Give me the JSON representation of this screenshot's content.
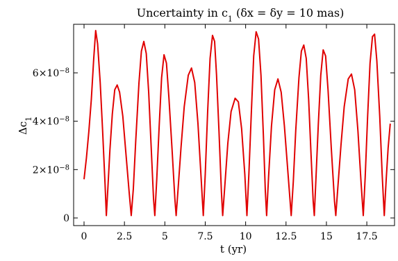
{
  "chart_data": {
    "type": "line",
    "title": "Uncertainty in c",
    "title_sub": "1",
    "title_rest": " (δx = δy = 10 mas)",
    "xlabel": "t (yr)",
    "ylabel": "Δc",
    "ylabel_sub": "1",
    "xlim": [
      0,
      19
    ],
    "ylim": [
      0,
      8.3e-08
    ],
    "x_ticks": [
      {
        "value": 0,
        "label": "0"
      },
      {
        "value": 2.5,
        "label": "2.5"
      },
      {
        "value": 5,
        "label": "5"
      },
      {
        "value": 7.5,
        "label": "7.5"
      },
      {
        "value": 10,
        "label": "10"
      },
      {
        "value": 12.5,
        "label": "12.5"
      },
      {
        "value": 15,
        "label": "15"
      },
      {
        "value": 17.5,
        "label": "17.5"
      }
    ],
    "y_ticks": [
      {
        "value": 0,
        "mant": "0",
        "exp": ""
      },
      {
        "value": 2e-08,
        "mant": "2×10",
        "exp": "−8"
      },
      {
        "value": 4e-08,
        "mant": "4×10",
        "exp": "−8"
      },
      {
        "value": 6e-08,
        "mant": "6×10",
        "exp": "−8"
      }
    ],
    "grid": false,
    "series": [
      {
        "color": "#e00000",
        "points": [
          [
            0.0,
            1.6e-08
          ],
          [
            0.15,
            2.5e-08
          ],
          [
            0.3,
            3.6e-08
          ],
          [
            0.45,
            4.9e-08
          ],
          [
            0.6,
            6.6e-08
          ],
          [
            0.72,
            7.75e-08
          ],
          [
            0.84,
            7.2e-08
          ],
          [
            1.0,
            5.6e-08
          ],
          [
            1.15,
            3.6e-08
          ],
          [
            1.3,
            1.4e-08
          ],
          [
            1.38,
            1e-09
          ],
          [
            1.48,
            1.3e-08
          ],
          [
            1.6,
            2.8e-08
          ],
          [
            1.75,
            4.3e-08
          ],
          [
            1.9,
            5.3e-08
          ],
          [
            2.05,
            5.5e-08
          ],
          [
            2.2,
            5.2e-08
          ],
          [
            2.4,
            4.2e-08
          ],
          [
            2.6,
            2.6e-08
          ],
          [
            2.8,
            1e-08
          ],
          [
            2.92,
            1e-09
          ],
          [
            3.05,
            1.2e-08
          ],
          [
            3.2,
            3.2e-08
          ],
          [
            3.4,
            5.6e-08
          ],
          [
            3.55,
            6.9e-08
          ],
          [
            3.7,
            7.3e-08
          ],
          [
            3.85,
            6.8e-08
          ],
          [
            4.0,
            5.2e-08
          ],
          [
            4.15,
            3e-08
          ],
          [
            4.3,
            8e-09
          ],
          [
            4.38,
            1e-09
          ],
          [
            4.5,
            1.6e-08
          ],
          [
            4.65,
            3.8e-08
          ],
          [
            4.8,
            5.8e-08
          ],
          [
            4.95,
            6.75e-08
          ],
          [
            5.1,
            6.4e-08
          ],
          [
            5.25,
            5e-08
          ],
          [
            5.45,
            2.8e-08
          ],
          [
            5.62,
            8e-09
          ],
          [
            5.7,
            1e-09
          ],
          [
            5.82,
            1.2e-08
          ],
          [
            6.0,
            2.9e-08
          ],
          [
            6.2,
            4.6e-08
          ],
          [
            6.45,
            5.9e-08
          ],
          [
            6.65,
            6.2e-08
          ],
          [
            6.85,
            5.6e-08
          ],
          [
            7.05,
            3.9e-08
          ],
          [
            7.25,
            1.6e-08
          ],
          [
            7.38,
            1e-09
          ],
          [
            7.5,
            1.8e-08
          ],
          [
            7.65,
            4.4e-08
          ],
          [
            7.8,
            6.6e-08
          ],
          [
            7.95,
            7.55e-08
          ],
          [
            8.08,
            7.3e-08
          ],
          [
            8.2,
            5.9e-08
          ],
          [
            8.35,
            3.6e-08
          ],
          [
            8.5,
            1.1e-08
          ],
          [
            8.58,
            1e-09
          ],
          [
            8.72,
            1.4e-08
          ],
          [
            8.9,
            3.1e-08
          ],
          [
            9.1,
            4.4e-08
          ],
          [
            9.35,
            4.95e-08
          ],
          [
            9.55,
            4.8e-08
          ],
          [
            9.75,
            3.7e-08
          ],
          [
            9.95,
            1.8e-08
          ],
          [
            10.08,
            1e-09
          ],
          [
            10.2,
            1.8e-08
          ],
          [
            10.35,
            4.3e-08
          ],
          [
            10.5,
            6.7e-08
          ],
          [
            10.65,
            7.7e-08
          ],
          [
            10.8,
            7.4e-08
          ],
          [
            10.95,
            5.9e-08
          ],
          [
            11.1,
            3.4e-08
          ],
          [
            11.22,
            1.1e-08
          ],
          [
            11.3,
            1e-09
          ],
          [
            11.42,
            1.7e-08
          ],
          [
            11.6,
            3.8e-08
          ],
          [
            11.8,
            5.3e-08
          ],
          [
            12.0,
            5.75e-08
          ],
          [
            12.2,
            5.2e-08
          ],
          [
            12.4,
            3.8e-08
          ],
          [
            12.65,
            1.6e-08
          ],
          [
            12.82,
            1e-09
          ],
          [
            12.95,
            1.5e-08
          ],
          [
            13.1,
            3.6e-08
          ],
          [
            13.3,
            5.8e-08
          ],
          [
            13.45,
            6.9e-08
          ],
          [
            13.6,
            7.15e-08
          ],
          [
            13.75,
            6.6e-08
          ],
          [
            13.9,
            4.9e-08
          ],
          [
            14.05,
            2.6e-08
          ],
          [
            14.18,
            7e-09
          ],
          [
            14.25,
            1e-09
          ],
          [
            14.35,
            1.6e-08
          ],
          [
            14.5,
            3.9e-08
          ],
          [
            14.65,
            5.9e-08
          ],
          [
            14.8,
            6.95e-08
          ],
          [
            14.95,
            6.7e-08
          ],
          [
            15.1,
            5.3e-08
          ],
          [
            15.3,
            2.9e-08
          ],
          [
            15.5,
            7e-09
          ],
          [
            15.58,
            1e-09
          ],
          [
            15.7,
            1.2e-08
          ],
          [
            15.9,
            3e-08
          ],
          [
            16.1,
            4.6e-08
          ],
          [
            16.35,
            5.75e-08
          ],
          [
            16.55,
            5.95e-08
          ],
          [
            16.75,
            5.3e-08
          ],
          [
            16.95,
            3.6e-08
          ],
          [
            17.15,
            1.4e-08
          ],
          [
            17.28,
            1e-09
          ],
          [
            17.4,
            1.7e-08
          ],
          [
            17.55,
            4.2e-08
          ],
          [
            17.7,
            6.4e-08
          ],
          [
            17.85,
            7.5e-08
          ],
          [
            17.98,
            7.6e-08
          ],
          [
            18.12,
            6.5e-08
          ],
          [
            18.3,
            4.2e-08
          ],
          [
            18.45,
            1.8e-08
          ],
          [
            18.58,
            1e-09
          ],
          [
            18.7,
            1.6e-08
          ],
          [
            18.82,
            2.9e-08
          ],
          [
            18.95,
            3.9e-08
          ]
        ]
      }
    ]
  }
}
